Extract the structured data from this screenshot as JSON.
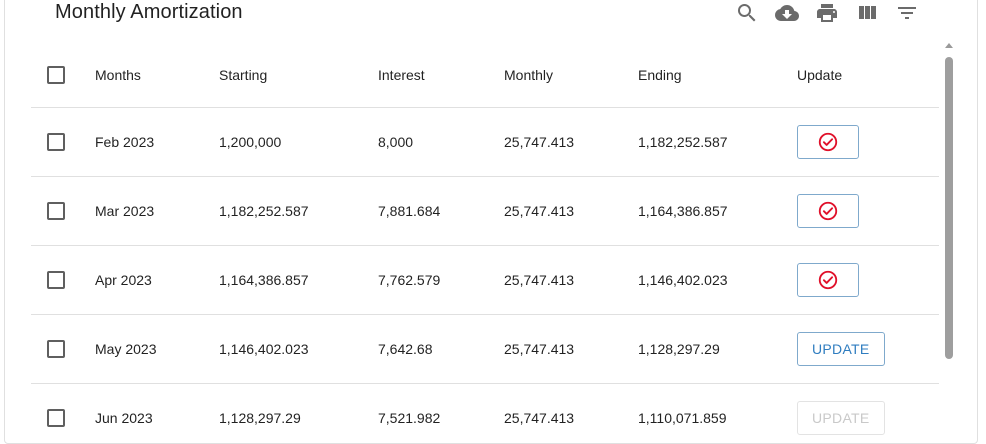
{
  "title": "Monthly Amortization",
  "toolbar": {
    "icons": [
      "search-icon",
      "cloud-download-icon",
      "print-icon",
      "view-column-icon",
      "filter-list-icon"
    ]
  },
  "columns": {
    "months": "Months",
    "starting": "Starting",
    "interest": "Interest",
    "monthly": "Monthly",
    "ending": "Ending",
    "update": "Update"
  },
  "rows": [
    {
      "months": "Feb 2023",
      "starting": "1,200,000",
      "interest": "8,000",
      "monthly": "25,747.413",
      "ending": "1,182,252.587",
      "update": "done"
    },
    {
      "months": "Mar 2023",
      "starting": "1,182,252.587",
      "interest": "7,881.684",
      "monthly": "25,747.413",
      "ending": "1,164,386.857",
      "update": "done"
    },
    {
      "months": "Apr 2023",
      "starting": "1,164,386.857",
      "interest": "7,762.579",
      "monthly": "25,747.413",
      "ending": "1,146,402.023",
      "update": "done"
    },
    {
      "months": "May 2023",
      "starting": "1,146,402.023",
      "interest": "7,642.68",
      "monthly": "25,747.413",
      "ending": "1,128,297.29",
      "update": "UPDATE"
    },
    {
      "months": "Jun 2023",
      "starting": "1,128,297.29",
      "interest": "7,521.982",
      "monthly": "25,747.413",
      "ending": "1,110,071.859",
      "update": "UPDATE"
    }
  ],
  "colors": {
    "check_red": "#e0102a",
    "update_blue": "#2f7dc0"
  }
}
